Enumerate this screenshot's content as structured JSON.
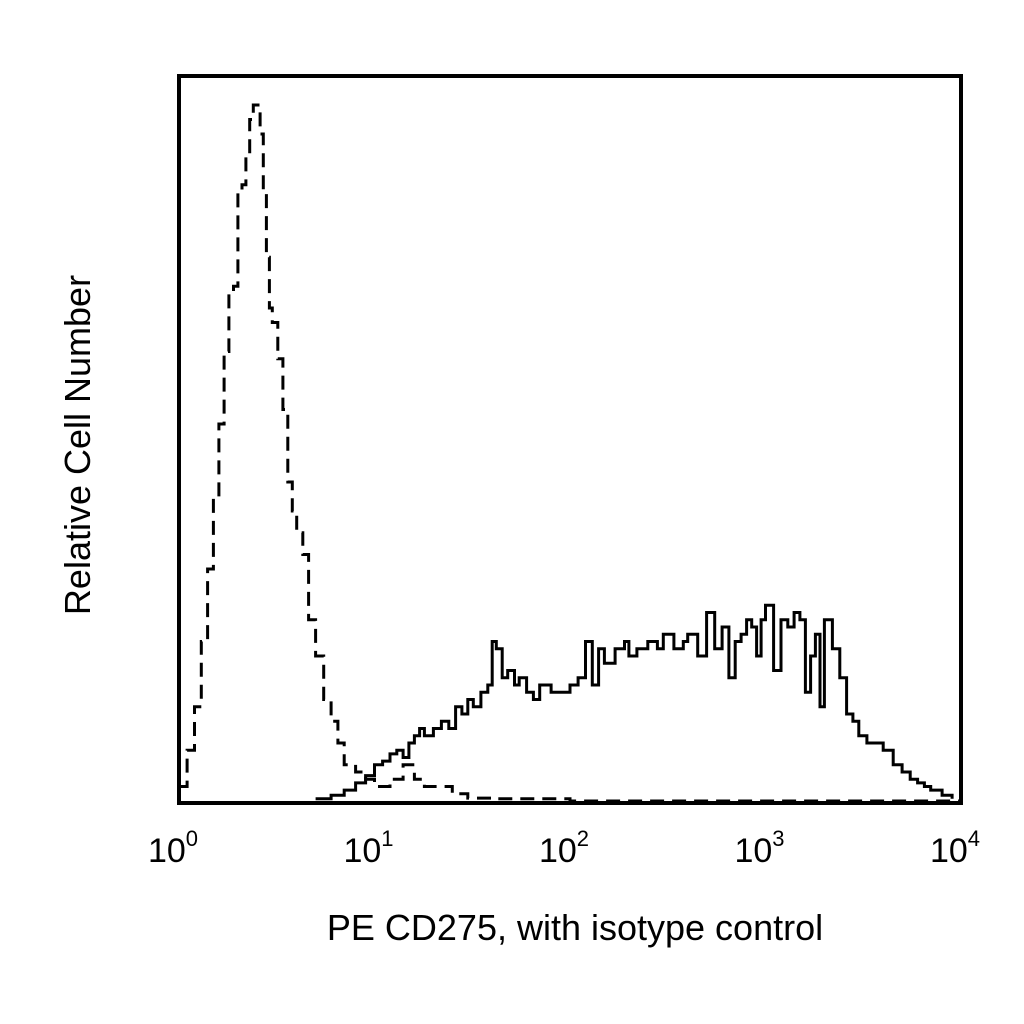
{
  "chart_data": {
    "type": "line",
    "title": "",
    "xlabel": "PE CD275, with isotype control",
    "ylabel": "Relative Cell Number",
    "x_scale": "log",
    "xlim": [
      1,
      10000
    ],
    "ylim": [
      0,
      100
    ],
    "grid": false,
    "legend": "none",
    "x_ticks": [
      {
        "base": "10",
        "exp": "0",
        "value": 1
      },
      {
        "base": "10",
        "exp": "1",
        "value": 10
      },
      {
        "base": "10",
        "exp": "2",
        "value": 100
      },
      {
        "base": "10",
        "exp": "3",
        "value": 1000
      },
      {
        "base": "10",
        "exp": "4",
        "value": 10000
      }
    ],
    "series": [
      {
        "style": "dashed",
        "color": "#000000",
        "x": [
          1.0,
          1.1,
          1.2,
          1.3,
          1.4,
          1.5,
          1.6,
          1.7,
          1.8,
          1.9,
          2.0,
          2.1,
          2.2,
          2.3,
          2.4,
          2.5,
          2.6,
          2.7,
          2.8,
          2.9,
          3.0,
          3.2,
          3.4,
          3.6,
          3.8,
          4.0,
          4.3,
          4.6,
          5.0,
          5.5,
          6.0,
          6.5,
          7.0,
          8.0,
          9.0,
          10.0,
          12.0,
          14.0,
          16.0,
          18.0,
          20.0,
          25.0,
          30.0,
          40.0,
          100.0,
          1000.0,
          10000.0
        ],
        "y": [
          2,
          7,
          13,
          22,
          32,
          42,
          52,
          62,
          70,
          71,
          84,
          85,
          89,
          94,
          96,
          96,
          92,
          84,
          75,
          68,
          66,
          61,
          54,
          44,
          40,
          37,
          34,
          25,
          20,
          14,
          11,
          8,
          5,
          4,
          3,
          2,
          3,
          5,
          3,
          2,
          2,
          1,
          0.4,
          0.3,
          0,
          0,
          0
        ]
      },
      {
        "style": "solid",
        "color": "#000000",
        "x": [
          5.0,
          6.0,
          7.0,
          8.0,
          9.0,
          10.0,
          11.0,
          12.0,
          13.0,
          14.0,
          15.0,
          16.0,
          17.0,
          18.0,
          20.0,
          22.0,
          24.0,
          26.0,
          28.0,
          30.0,
          32.0,
          35.0,
          38.0,
          40.0,
          42.0,
          45.0,
          48.0,
          52.0,
          55.0,
          60.0,
          65.0,
          70.0,
          80.0,
          90.0,
          100.0,
          110.0,
          120.0,
          130.0,
          140.0,
          150.0,
          170.0,
          190.0,
          200.0,
          220.0,
          250.0,
          280.0,
          300.0,
          340.0,
          380.0,
          400.0,
          450.0,
          500.0,
          550.0,
          600.0,
          650.0,
          700.0,
          750.0,
          800.0,
          850.0,
          900.0,
          950.0,
          1000.0,
          1100.0,
          1200.0,
          1300.0,
          1400.0,
          1500.0,
          1600.0,
          1700.0,
          1800.0,
          1900.0,
          2000.0,
          2200.0,
          2400.0,
          2600.0,
          2800.0,
          3000.0,
          3300.0,
          3600.0,
          4000.0,
          4500.0,
          5000.0,
          5500.0,
          6000.0,
          6500.0,
          7000.0,
          8000.0,
          9000.0
        ],
        "y": [
          0.3,
          0.8,
          1.5,
          2.5,
          3.5,
          5,
          5.5,
          6.5,
          7,
          6,
          8,
          9,
          10,
          9,
          10,
          11,
          10,
          13,
          12,
          14,
          13,
          15,
          16,
          22,
          21,
          17,
          18,
          16,
          17,
          15,
          14,
          16,
          15,
          15,
          16,
          17,
          22,
          16,
          21,
          19,
          21,
          22,
          20,
          21,
          22,
          21,
          23,
          21,
          22,
          23,
          20,
          26,
          21,
          24,
          17,
          22,
          23,
          25,
          24,
          20,
          25,
          27,
          18,
          25,
          24,
          26,
          25,
          15,
          20,
          23,
          13,
          25,
          21,
          17,
          12,
          11,
          9,
          8,
          8,
          7,
          5,
          4,
          3,
          2.5,
          2,
          1.5,
          0.8,
          0.3
        ]
      }
    ]
  }
}
